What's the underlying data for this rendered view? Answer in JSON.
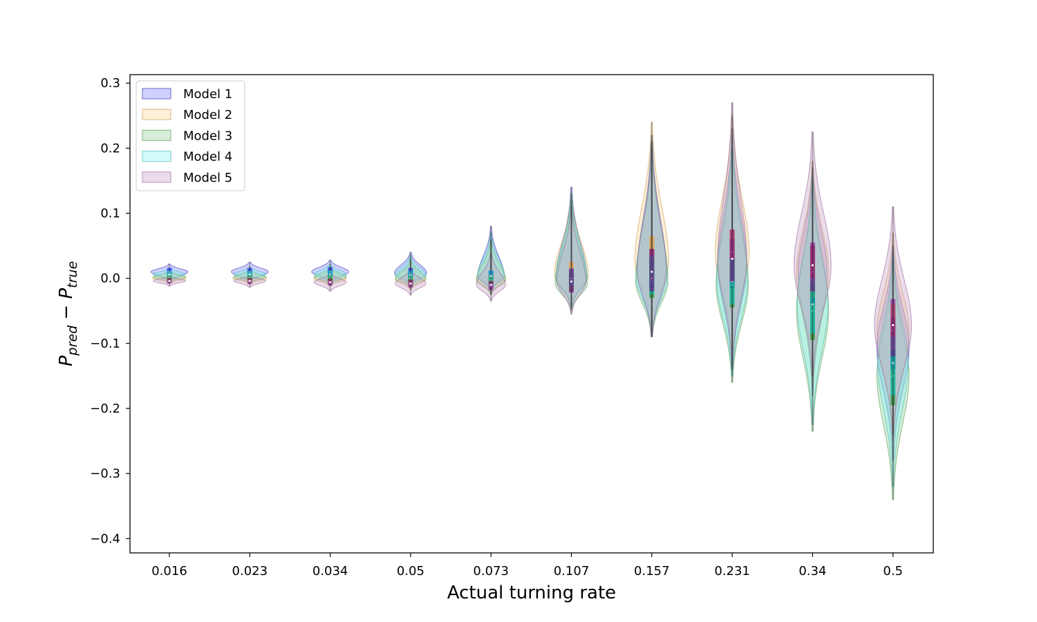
{
  "chart_data": {
    "type": "violin",
    "xlabel": "Actual turning rate",
    "ylabel": {
      "main": "P",
      "sub1": "pred",
      "sep": " − ",
      "main2": "P",
      "sub2": "true"
    },
    "categories": [
      "0.016",
      "0.023",
      "0.034",
      "0.05",
      "0.073",
      "0.107",
      "0.157",
      "0.231",
      "0.34",
      "0.5"
    ],
    "ylim": [
      -0.422,
      0.313
    ],
    "yticks": [
      0.3,
      0.2,
      0.1,
      0.0,
      -0.1,
      -0.2,
      -0.3,
      -0.4
    ],
    "ytick_labels": [
      "0.3",
      "0.2",
      "0.1",
      "0.0",
      "−0.1",
      "−0.2",
      "−0.3",
      "−0.4"
    ],
    "legend_position": "upper left",
    "grid": false,
    "series": [
      {
        "name": "Model 1",
        "color": "#0000ff",
        "fill": "#7b7bff",
        "edge": "#3a3ab0",
        "violins": [
          {
            "median": 0.01,
            "q1": 0.006,
            "q3": 0.016,
            "min": -0.004,
            "max": 0.022,
            "width": 0.46
          },
          {
            "median": 0.01,
            "q1": 0.005,
            "q3": 0.016,
            "min": -0.005,
            "max": 0.025,
            "width": 0.46
          },
          {
            "median": 0.01,
            "q1": 0.004,
            "q3": 0.017,
            "min": -0.006,
            "max": 0.028,
            "width": 0.46
          },
          {
            "median": 0.008,
            "q1": 0.002,
            "q3": 0.016,
            "min": -0.01,
            "max": 0.04,
            "width": 0.4
          },
          {
            "median": 0.005,
            "q1": 0.0,
            "q3": 0.012,
            "min": -0.02,
            "max": 0.08,
            "width": 0.32
          },
          {
            "median": 0.0,
            "q1": -0.01,
            "q3": 0.012,
            "min": -0.045,
            "max": 0.14,
            "width": 0.38
          },
          {
            "median": 0.01,
            "q1": -0.015,
            "q3": 0.045,
            "min": -0.09,
            "max": 0.22,
            "width": 0.36
          },
          {
            "median": 0.02,
            "q1": -0.015,
            "q3": 0.06,
            "min": -0.14,
            "max": 0.23,
            "width": 0.36
          },
          {
            "median": 0.01,
            "q1": -0.04,
            "q3": 0.05,
            "min": -0.18,
            "max": 0.17,
            "width": 0.36
          },
          {
            "median": -0.105,
            "q1": -0.14,
            "q3": -0.06,
            "min": -0.28,
            "max": 0.05,
            "width": 0.4
          }
        ]
      },
      {
        "name": "Model 2",
        "color": "#ff8c00",
        "fill": "#fcd48f",
        "edge": "#c7a05a",
        "violins": [
          {
            "median": 0.0,
            "q1": -0.003,
            "q3": 0.004,
            "min": -0.008,
            "max": 0.01,
            "width": 0.42
          },
          {
            "median": 0.0,
            "q1": -0.003,
            "q3": 0.004,
            "min": -0.009,
            "max": 0.012,
            "width": 0.42
          },
          {
            "median": -0.001,
            "q1": -0.005,
            "q3": 0.004,
            "min": -0.012,
            "max": 0.015,
            "width": 0.4
          },
          {
            "median": -0.002,
            "q1": -0.007,
            "q3": 0.004,
            "min": -0.018,
            "max": 0.025,
            "width": 0.38
          },
          {
            "median": -0.002,
            "q1": -0.008,
            "q3": 0.005,
            "min": -0.025,
            "max": 0.06,
            "width": 0.36
          },
          {
            "median": 0.005,
            "q1": -0.01,
            "q3": 0.025,
            "min": -0.04,
            "max": 0.13,
            "width": 0.42
          },
          {
            "median": 0.025,
            "q1": -0.005,
            "q3": 0.065,
            "min": -0.07,
            "max": 0.24,
            "width": 0.42
          },
          {
            "median": 0.04,
            "q1": 0.0,
            "q3": 0.075,
            "min": -0.11,
            "max": 0.25,
            "width": 0.42
          },
          {
            "median": 0.01,
            "q1": -0.03,
            "q3": 0.05,
            "min": -0.17,
            "max": 0.18,
            "width": 0.4
          },
          {
            "median": -0.08,
            "q1": -0.11,
            "q3": -0.04,
            "min": -0.25,
            "max": 0.07,
            "width": 0.4
          }
        ]
      },
      {
        "name": "Model 3",
        "color": "#008000",
        "fill": "#8fcf8f",
        "edge": "#5a9c5a",
        "violins": [
          {
            "median": 0.002,
            "q1": -0.002,
            "q3": 0.006,
            "min": -0.006,
            "max": 0.012,
            "width": 0.4
          },
          {
            "median": 0.002,
            "q1": -0.002,
            "q3": 0.006,
            "min": -0.007,
            "max": 0.014,
            "width": 0.4
          },
          {
            "median": 0.002,
            "q1": -0.003,
            "q3": 0.007,
            "min": -0.01,
            "max": 0.018,
            "width": 0.4
          },
          {
            "median": 0.0,
            "q1": -0.005,
            "q3": 0.006,
            "min": -0.015,
            "max": 0.03,
            "width": 0.38
          },
          {
            "median": -0.003,
            "q1": -0.009,
            "q3": 0.003,
            "min": -0.025,
            "max": 0.06,
            "width": 0.36
          },
          {
            "median": -0.008,
            "q1": -0.02,
            "q3": 0.008,
            "min": -0.05,
            "max": 0.12,
            "width": 0.4
          },
          {
            "median": -0.005,
            "q1": -0.03,
            "q3": 0.03,
            "min": -0.09,
            "max": 0.2,
            "width": 0.4
          },
          {
            "median": -0.01,
            "q1": -0.045,
            "q3": 0.03,
            "min": -0.16,
            "max": 0.2,
            "width": 0.4
          },
          {
            "median": -0.05,
            "q1": -0.095,
            "q3": -0.01,
            "min": -0.235,
            "max": 0.15,
            "width": 0.4
          },
          {
            "median": -0.15,
            "q1": -0.195,
            "q3": -0.11,
            "min": -0.34,
            "max": 0.03,
            "width": 0.4
          }
        ]
      },
      {
        "name": "Model 4",
        "color": "#00ced1",
        "fill": "#7ff5f5",
        "edge": "#4fb8b8",
        "violins": [
          {
            "median": 0.006,
            "q1": 0.002,
            "q3": 0.011,
            "min": -0.004,
            "max": 0.016,
            "width": 0.4
          },
          {
            "median": 0.006,
            "q1": 0.002,
            "q3": 0.011,
            "min": -0.005,
            "max": 0.018,
            "width": 0.4
          },
          {
            "median": 0.006,
            "q1": 0.001,
            "q3": 0.012,
            "min": -0.008,
            "max": 0.022,
            "width": 0.4
          },
          {
            "median": 0.005,
            "q1": -0.001,
            "q3": 0.012,
            "min": -0.012,
            "max": 0.035,
            "width": 0.38
          },
          {
            "median": 0.003,
            "q1": -0.004,
            "q3": 0.012,
            "min": -0.02,
            "max": 0.07,
            "width": 0.34
          },
          {
            "median": 0.0,
            "q1": -0.012,
            "q3": 0.015,
            "min": -0.045,
            "max": 0.13,
            "width": 0.38
          },
          {
            "median": 0.0,
            "q1": -0.025,
            "q3": 0.035,
            "min": -0.085,
            "max": 0.21,
            "width": 0.38
          },
          {
            "median": -0.005,
            "q1": -0.04,
            "q3": 0.03,
            "min": -0.15,
            "max": 0.22,
            "width": 0.38
          },
          {
            "median": -0.04,
            "q1": -0.085,
            "q3": 0.0,
            "min": -0.225,
            "max": 0.16,
            "width": 0.38
          },
          {
            "median": -0.13,
            "q1": -0.18,
            "q3": -0.09,
            "min": -0.32,
            "max": 0.04,
            "width": 0.38
          }
        ]
      },
      {
        "name": "Model 5",
        "color": "#800080",
        "fill": "#c79ac7",
        "edge": "#9a6a9a",
        "violins": [
          {
            "median": -0.004,
            "q1": -0.008,
            "q3": 0.0,
            "min": -0.012,
            "max": 0.004,
            "width": 0.4
          },
          {
            "median": -0.004,
            "q1": -0.009,
            "q3": 0.0,
            "min": -0.014,
            "max": 0.005,
            "width": 0.4
          },
          {
            "median": -0.006,
            "q1": -0.011,
            "q3": -0.001,
            "min": -0.02,
            "max": 0.008,
            "width": 0.4
          },
          {
            "median": -0.008,
            "q1": -0.014,
            "q3": -0.002,
            "min": -0.026,
            "max": 0.015,
            "width": 0.38
          },
          {
            "median": -0.01,
            "q1": -0.018,
            "q3": -0.004,
            "min": -0.035,
            "max": 0.04,
            "width": 0.36
          },
          {
            "median": -0.005,
            "q1": -0.022,
            "q3": 0.015,
            "min": -0.055,
            "max": 0.11,
            "width": 0.36
          },
          {
            "median": 0.01,
            "q1": -0.02,
            "q3": 0.045,
            "min": -0.09,
            "max": 0.21,
            "width": 0.36
          },
          {
            "median": 0.03,
            "q1": -0.005,
            "q3": 0.075,
            "min": -0.135,
            "max": 0.27,
            "width": 0.36
          },
          {
            "median": 0.02,
            "q1": -0.02,
            "q3": 0.055,
            "min": -0.15,
            "max": 0.225,
            "width": 0.46
          },
          {
            "median": -0.072,
            "q1": -0.12,
            "q3": -0.032,
            "min": -0.24,
            "max": 0.11,
            "width": 0.46
          }
        ]
      }
    ]
  }
}
